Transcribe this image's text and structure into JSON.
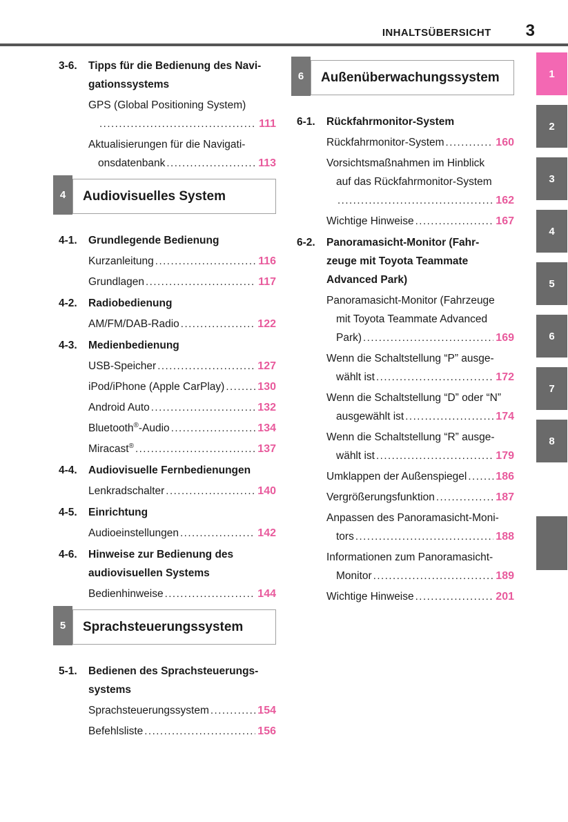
{
  "header": {
    "title": "INHALTSÜBERSICHT",
    "page_number": "3"
  },
  "colors": {
    "accent_pink": "#e85a9c",
    "tab_active_pink": "#f368b3",
    "tab_gray": "#6a6a6a",
    "chapter_badge_gray": "#767676",
    "box_border_gray": "#a0a0a0",
    "header_rule_gray": "#565656"
  },
  "side_tabs": {
    "tabs": [
      "1",
      "2",
      "3",
      "4",
      "5",
      "6",
      "7",
      "8"
    ],
    "active_tab": "1",
    "has_blank_tab": true
  },
  "columns": {
    "left": [
      {
        "type": "section",
        "label": "3-6.",
        "lines": [
          "Tipps für die Bedienung des Navi-",
          "gationssystems"
        ]
      },
      {
        "type": "entry",
        "lines": [
          "GPS (Global Positioning System)",
          ""
        ],
        "page": "111"
      },
      {
        "type": "entry",
        "lines": [
          "Aktualisierungen für die Navigati-",
          "onsdatenbank"
        ],
        "page": "113"
      },
      {
        "type": "chapter",
        "num": "4",
        "title": "Audiovisuelles System"
      },
      {
        "type": "section",
        "label": "4-1.",
        "lines": [
          "Grundlegende Bedienung"
        ]
      },
      {
        "type": "entry",
        "lines": [
          "Kurzanleitung"
        ],
        "page": "116"
      },
      {
        "type": "entry",
        "lines": [
          "Grundlagen"
        ],
        "page": "117"
      },
      {
        "type": "section",
        "label": "4-2.",
        "lines": [
          "Radiobedienung"
        ]
      },
      {
        "type": "entry",
        "lines": [
          "AM/FM/DAB-Radio"
        ],
        "page": "122"
      },
      {
        "type": "section",
        "label": "4-3.",
        "lines": [
          "Medienbedienung"
        ]
      },
      {
        "type": "entry",
        "lines": [
          "USB-Speicher"
        ],
        "page": "127"
      },
      {
        "type": "entry",
        "lines": [
          "iPod/iPhone (Apple CarPlay)"
        ],
        "page": "130"
      },
      {
        "type": "entry",
        "lines": [
          "Android Auto"
        ],
        "page": "132"
      },
      {
        "type": "entry",
        "lines": [
          "Bluetooth®-Audio"
        ],
        "page": "134"
      },
      {
        "type": "entry",
        "lines": [
          "Miracast®"
        ],
        "page": "137"
      },
      {
        "type": "section",
        "label": "4-4.",
        "lines": [
          "Audiovisuelle Fernbedienungen"
        ]
      },
      {
        "type": "entry",
        "lines": [
          "Lenkradschalter"
        ],
        "page": "140"
      },
      {
        "type": "section",
        "label": "4-5.",
        "lines": [
          "Einrichtung"
        ]
      },
      {
        "type": "entry",
        "lines": [
          "Audioeinstellungen"
        ],
        "page": "142"
      },
      {
        "type": "section",
        "label": "4-6.",
        "lines": [
          "Hinweise zur Bedienung des",
          "audiovisuellen Systems"
        ]
      },
      {
        "type": "entry",
        "lines": [
          "Bedienhinweise"
        ],
        "page": "144"
      },
      {
        "type": "chapter",
        "num": "5",
        "title": "Sprachsteuerungssystem"
      },
      {
        "type": "section",
        "label": "5-1.",
        "lines": [
          "Bedienen des Sprachsteuerungs-",
          "systems"
        ]
      },
      {
        "type": "entry",
        "lines": [
          "Sprachsteuerungssystem"
        ],
        "page": "154"
      },
      {
        "type": "entry",
        "lines": [
          "Befehlsliste"
        ],
        "page": "156"
      }
    ],
    "right": [
      {
        "type": "chapter",
        "num": "6",
        "title": "Außenüberwachungssystem"
      },
      {
        "type": "section",
        "label": "6-1.",
        "lines": [
          "Rückfahrmonitor-System"
        ]
      },
      {
        "type": "entry",
        "lines": [
          "Rückfahrmonitor-System"
        ],
        "page": "160"
      },
      {
        "type": "entry",
        "lines": [
          "Vorsichtsmaßnahmen im Hinblick",
          "auf das Rückfahrmonitor-System",
          ""
        ],
        "page": "162"
      },
      {
        "type": "entry",
        "lines": [
          "Wichtige Hinweise"
        ],
        "page": "167"
      },
      {
        "type": "section",
        "label": "6-2.",
        "lines": [
          "Panoramasicht-Monitor (Fahr-",
          "zeuge mit Toyota Teammate",
          "Advanced Park)"
        ]
      },
      {
        "type": "entry",
        "lines": [
          "Panoramasicht-Monitor (Fahrzeuge",
          "mit Toyota Teammate Advanced",
          "Park)"
        ],
        "page": "169"
      },
      {
        "type": "entry",
        "lines": [
          "Wenn die Schaltstellung “P” ausge-",
          "wählt ist"
        ],
        "page": "172"
      },
      {
        "type": "entry",
        "lines": [
          "Wenn die Schaltstellung “D” oder “N”",
          "ausgewählt ist"
        ],
        "page": "174"
      },
      {
        "type": "entry",
        "lines": [
          "Wenn die Schaltstellung “R” ausge-",
          "wählt ist"
        ],
        "page": "179"
      },
      {
        "type": "entry",
        "lines": [
          "Umklappen der Außenspiegel"
        ],
        "page": "186"
      },
      {
        "type": "entry",
        "lines": [
          "Vergrößerungsfunktion"
        ],
        "page": "187"
      },
      {
        "type": "entry",
        "lines": [
          "Anpassen des Panoramasicht-Moni-",
          "tors"
        ],
        "page": "188"
      },
      {
        "type": "entry",
        "lines": [
          "Informationen zum Panoramasicht-",
          "Monitor"
        ],
        "page": "189"
      },
      {
        "type": "entry",
        "lines": [
          "Wichtige Hinweise"
        ],
        "page": "201"
      }
    ]
  }
}
